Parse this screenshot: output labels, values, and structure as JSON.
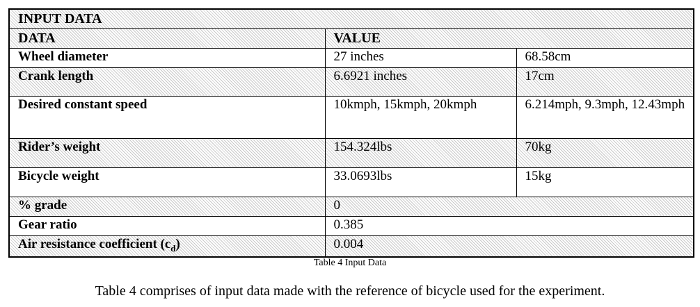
{
  "table": {
    "title": "INPUT DATA",
    "header": [
      "DATA",
      "VALUE"
    ],
    "rows": [
      [
        "Wheel diameter",
        "27 inches",
        "68.58cm"
      ],
      [
        "Crank length",
        "6.6921 inches",
        "17cm"
      ],
      [
        "Desired constant speed",
        "10kmph, 15kmph, 20kmph",
        "6.214mph, 9.3mph, 12.43mph"
      ],
      [
        "Rider’s weight",
        "154.324lbs",
        "70kg"
      ],
      [
        "Bicycle weight",
        "33.0693lbs",
        "15kg"
      ],
      [
        "% grade",
        "0"
      ],
      [
        "Gear ratio",
        "0.385"
      ]
    ],
    "air_resistance": {
      "label": "Air resistance coefficient (c",
      "subscript": "d",
      "close": ")",
      "value": "0.004"
    }
  },
  "caption": "Table 4 Input Data",
  "paragraph": "Table 4 comprises of input data made with the reference of bicycle used for the experiment."
}
